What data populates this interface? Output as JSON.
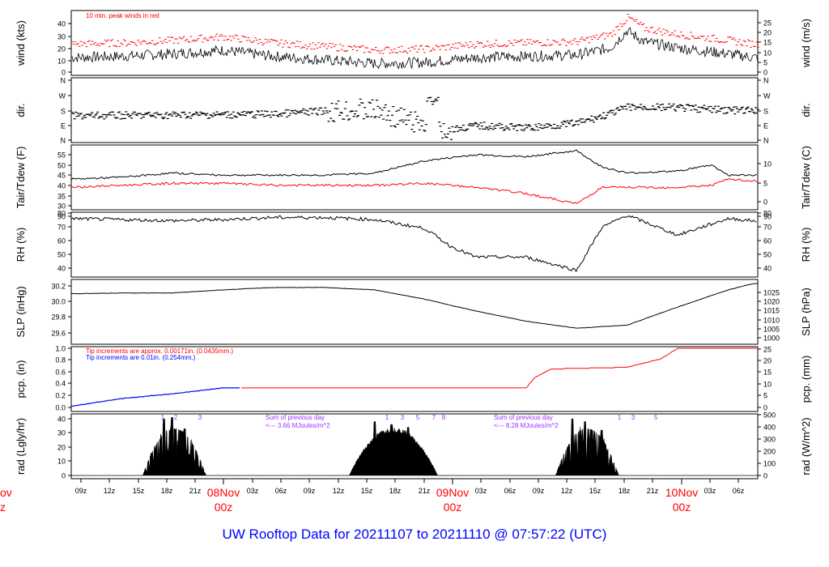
{
  "title": "UW Rooftop Data for 20211107  to  20211110 @ 07:57:22  (UTC)",
  "colors": {
    "axis": "#000000",
    "red": "#ff0000",
    "blue": "#0000ff",
    "purple": "#9b30ff",
    "title": "#0000ff"
  },
  "panels": [
    {
      "key": "wind",
      "ylabel_left": "wind (kts)",
      "ylabel_right": "wind (m/s)",
      "ticks_left": [
        "0",
        "10",
        "20",
        "30",
        "40"
      ],
      "ticks_right": [
        "0",
        "5",
        "10",
        "15",
        "20",
        "25"
      ],
      "note": "10 min. peak winds in red"
    },
    {
      "key": "dir",
      "ylabel_left": "dir.",
      "ylabel_right": "dir.",
      "ticks_left": [
        "N",
        "E",
        "S",
        "W",
        "N"
      ],
      "ticks_right": [
        "N",
        "E",
        "S",
        "W",
        "N"
      ]
    },
    {
      "key": "temp",
      "ylabel_left": "Tair/Tdew (F)",
      "ylabel_right": "Tair/Tdew (C)",
      "ticks_left": [
        "30",
        "35",
        "40",
        "45",
        "50",
        "55"
      ],
      "ticks_right": [
        "0",
        "5",
        "10"
      ]
    },
    {
      "key": "rh",
      "ylabel_left": "RH (%)",
      "ylabel_right": "RH (%)",
      "ticks_left": [
        "40",
        "50",
        "60",
        "70",
        "80",
        "90"
      ],
      "ticks_right": [
        "40",
        "50",
        "60",
        "70",
        "80",
        "90"
      ]
    },
    {
      "key": "slp",
      "ylabel_left": "SLP (inHg)",
      "ylabel_right": "SLP (hPa)",
      "ticks_left": [
        "29.6",
        "29.8",
        "30.0",
        "30.2"
      ],
      "ticks_right": [
        "1000",
        "1005",
        "1010",
        "1015",
        "1020",
        "1025"
      ]
    },
    {
      "key": "pcp",
      "ylabel_left": "pcp. (in)",
      "ylabel_right": "pcp. (mm)",
      "ticks_left": [
        "0.0",
        "0.2",
        "0.4",
        "0.6",
        "0.8",
        "1.0"
      ],
      "ticks_right": [
        "0",
        "5",
        "10",
        "15",
        "20",
        "25"
      ],
      "note1": "Tip increments are approx. 0.00171in. (0.0435mm.)",
      "note2": "Tip increments are 0.01in. (0.254mm.)"
    },
    {
      "key": "rad",
      "ylabel_left": "rad (Lgly/hr)",
      "ylabel_right": "rad (W/m^2)",
      "ticks_left": [
        "0",
        "10",
        "20",
        "30",
        "40"
      ],
      "ticks_right": [
        "0",
        "100",
        "200",
        "300",
        "400",
        "500"
      ],
      "sum1_a": "Sum of previous day",
      "sum1_b": "<--- 3.66 MJoules/m^2",
      "sum2_a": "Sum of previous day",
      "sum2_b": "<--- 8.28 MJoules/m^2"
    }
  ],
  "xticks": [
    "09z",
    "12z",
    "15z",
    "18z",
    "21z",
    "03z",
    "06z",
    "09z",
    "12z",
    "15z",
    "18z",
    "21z",
    "03z",
    "06z",
    "09z",
    "12z",
    "15z",
    "18z",
    "21z",
    "03z",
    "06z"
  ],
  "days": [
    {
      "line1": "08Nov",
      "line2": "00z"
    },
    {
      "line1": "09Nov",
      "line2": "00z"
    },
    {
      "line1": "10Nov",
      "line2": "00z"
    }
  ],
  "left_cut_day": {
    "line1": "ov",
    "line2": "z"
  },
  "sun_marks": [
    "1",
    "2",
    "3",
    "1",
    "3",
    "5",
    "7",
    "8",
    "1",
    "3",
    "5"
  ],
  "chart_data": {
    "type": "line",
    "x_unit": "hours since 2021-11-07 06z",
    "series": [
      {
        "panel": "wind",
        "color": "black",
        "x": [
          0,
          6,
          12,
          18,
          24,
          30,
          36,
          42,
          48,
          54,
          60,
          64,
          66,
          68,
          72,
          78,
          81
        ],
        "values": [
          12,
          13,
          15,
          18,
          13,
          10,
          7,
          8,
          12,
          13,
          14,
          20,
          34,
          25,
          20,
          15,
          12
        ]
      },
      {
        "panel": "temp",
        "color": "black",
        "x": [
          0,
          6,
          12,
          18,
          24,
          30,
          36,
          42,
          48,
          54,
          60,
          63,
          66,
          72,
          76,
          78,
          81
        ],
        "values": [
          43,
          44,
          46,
          45,
          45,
          45,
          46,
          52,
          55,
          54,
          57,
          49,
          46,
          47,
          50,
          45,
          45
        ]
      },
      {
        "panel": "temp",
        "color": "red",
        "x": [
          0,
          6,
          12,
          18,
          24,
          30,
          36,
          42,
          48,
          54,
          60,
          63,
          66,
          72,
          76,
          78,
          81
        ],
        "values": [
          39,
          40,
          41,
          41,
          40,
          40,
          40,
          41,
          39,
          36,
          31,
          39,
          39,
          39,
          40,
          43,
          42
        ]
      },
      {
        "panel": "rh",
        "color": "black",
        "x": [
          0,
          6,
          12,
          18,
          24,
          30,
          36,
          42,
          45,
          48,
          54,
          60,
          63,
          66,
          72,
          78,
          81
        ],
        "values": [
          85,
          84,
          83,
          84,
          86,
          86,
          84,
          76,
          60,
          50,
          50,
          38,
          77,
          88,
          70,
          85,
          83
        ]
      },
      {
        "panel": "slp",
        "color": "black",
        "x": [
          0,
          6,
          12,
          18,
          24,
          30,
          36,
          42,
          48,
          54,
          60,
          66,
          72,
          78,
          81
        ],
        "values": [
          30.1,
          30.11,
          30.11,
          30.15,
          30.18,
          30.18,
          30.15,
          30.03,
          29.88,
          29.75,
          29.66,
          29.7,
          29.93,
          30.15,
          30.23
        ]
      },
      {
        "panel": "pcp",
        "color": "red",
        "x": [
          0,
          6,
          12,
          18,
          20,
          30,
          40,
          54,
          55,
          57,
          66,
          70,
          72,
          81
        ],
        "values": [
          0.02,
          0.15,
          0.23,
          0.33,
          0.33,
          0.33,
          0.33,
          0.33,
          0.5,
          0.65,
          0.68,
          0.82,
          1.0,
          1.0
        ]
      }
    ]
  }
}
